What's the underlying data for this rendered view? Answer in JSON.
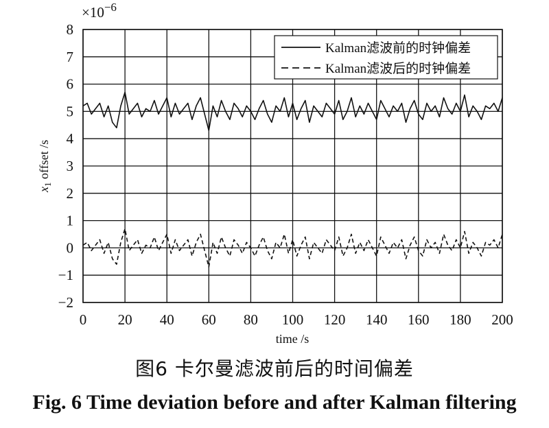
{
  "figure": {
    "caption_cn": "图6 卡尔曼滤波前后的时间偏差",
    "caption_en": "Fig. 6 Time deviation before and after Kalman filtering"
  },
  "chart_data": {
    "type": "line",
    "xlabel": "time /s",
    "ylabel_var": "x",
    "ylabel_sub": "1",
    "ylabel_rest": " offset /s",
    "y_multiplier": "×10",
    "y_multiplier_exp": "−6",
    "xlim": [
      0,
      200
    ],
    "ylim": [
      -2,
      8
    ],
    "x_ticks": [
      0,
      20,
      40,
      60,
      80,
      100,
      120,
      140,
      160,
      180,
      200
    ],
    "y_ticks": [
      -2,
      -1,
      0,
      1,
      2,
      3,
      4,
      5,
      6,
      7,
      8
    ],
    "x_tick_labels": [
      "0",
      "20",
      "40",
      "60",
      "80",
      "100",
      "120",
      "140",
      "160",
      "180",
      "200"
    ],
    "y_tick_labels": [
      "−2",
      "−1",
      "0",
      "1",
      "2",
      "3",
      "4",
      "5",
      "6",
      "7",
      "8"
    ],
    "grid": true,
    "legend_position": "top-right",
    "series": [
      {
        "name": "Kalman滤波前的时钟偏差",
        "style": "solid",
        "color": "#111111",
        "x": [
          0,
          2,
          4,
          6,
          8,
          10,
          12,
          14,
          16,
          18,
          20,
          22,
          24,
          26,
          28,
          30,
          32,
          34,
          36,
          38,
          40,
          42,
          44,
          46,
          48,
          50,
          52,
          54,
          56,
          58,
          60,
          62,
          64,
          66,
          68,
          70,
          72,
          74,
          76,
          78,
          80,
          82,
          84,
          86,
          88,
          90,
          92,
          94,
          96,
          98,
          100,
          102,
          104,
          106,
          108,
          110,
          112,
          114,
          116,
          118,
          120,
          122,
          124,
          126,
          128,
          130,
          132,
          134,
          136,
          138,
          140,
          142,
          144,
          146,
          148,
          150,
          152,
          154,
          156,
          158,
          160,
          162,
          164,
          166,
          168,
          170,
          172,
          174,
          176,
          178,
          180,
          182,
          184,
          186,
          188,
          190,
          192,
          194,
          196,
          198,
          200
        ],
        "values": [
          5.2,
          5.3,
          4.9,
          5.1,
          5.3,
          4.8,
          5.2,
          4.6,
          4.4,
          5.2,
          5.7,
          4.9,
          5.1,
          5.3,
          4.8,
          5.1,
          5.0,
          5.4,
          4.9,
          5.2,
          5.5,
          4.8,
          5.3,
          4.9,
          5.1,
          5.3,
          4.7,
          5.2,
          5.5,
          4.9,
          4.3,
          5.2,
          4.8,
          5.4,
          5.0,
          4.7,
          5.3,
          5.1,
          4.8,
          5.2,
          5.0,
          4.7,
          5.1,
          5.4,
          4.9,
          4.6,
          5.2,
          5.0,
          5.5,
          4.8,
          5.3,
          4.7,
          5.1,
          5.4,
          4.6,
          5.2,
          5.0,
          4.8,
          5.3,
          5.1,
          4.9,
          5.4,
          4.7,
          5.0,
          5.5,
          4.8,
          5.2,
          4.9,
          5.3,
          5.0,
          4.7,
          5.4,
          5.1,
          4.8,
          5.2,
          5.0,
          5.3,
          4.6,
          5.1,
          5.4,
          4.9,
          4.7,
          5.3,
          5.0,
          5.2,
          4.8,
          5.5,
          5.1,
          4.9,
          5.3,
          5.0,
          5.6,
          4.8,
          5.2,
          5.0,
          4.7,
          5.2,
          5.1,
          5.3,
          5.0,
          5.5
        ]
      },
      {
        "name": "Kalman滤波后的时钟偏差",
        "style": "dashed",
        "color": "#111111",
        "x": [
          0,
          2,
          4,
          6,
          8,
          10,
          12,
          14,
          16,
          18,
          20,
          22,
          24,
          26,
          28,
          30,
          32,
          34,
          36,
          38,
          40,
          42,
          44,
          46,
          48,
          50,
          52,
          54,
          56,
          58,
          60,
          62,
          64,
          66,
          68,
          70,
          72,
          74,
          76,
          78,
          80,
          82,
          84,
          86,
          88,
          90,
          92,
          94,
          96,
          98,
          100,
          102,
          104,
          106,
          108,
          110,
          112,
          114,
          116,
          118,
          120,
          122,
          124,
          126,
          128,
          130,
          132,
          134,
          136,
          138,
          140,
          142,
          144,
          146,
          148,
          150,
          152,
          154,
          156,
          158,
          160,
          162,
          164,
          166,
          168,
          170,
          172,
          174,
          176,
          178,
          180,
          182,
          184,
          186,
          188,
          190,
          192,
          194,
          196,
          198,
          200
        ],
        "values": [
          0.1,
          0.2,
          -0.1,
          0.1,
          0.3,
          -0.2,
          0.2,
          -0.4,
          -0.6,
          0.2,
          0.7,
          -0.1,
          0.1,
          0.3,
          -0.2,
          0.1,
          0.0,
          0.4,
          -0.1,
          0.2,
          0.5,
          -0.2,
          0.3,
          -0.1,
          0.1,
          0.3,
          -0.3,
          0.2,
          0.5,
          -0.1,
          -0.7,
          0.2,
          -0.2,
          0.4,
          0.0,
          -0.3,
          0.3,
          0.1,
          -0.2,
          0.2,
          0.0,
          -0.3,
          0.1,
          0.4,
          -0.1,
          -0.4,
          0.2,
          0.0,
          0.5,
          -0.2,
          0.3,
          -0.3,
          0.1,
          0.4,
          -0.4,
          0.2,
          0.0,
          -0.2,
          0.3,
          0.1,
          -0.1,
          0.4,
          -0.3,
          0.0,
          0.5,
          -0.2,
          0.2,
          -0.1,
          0.3,
          0.0,
          -0.3,
          0.4,
          0.1,
          -0.2,
          0.2,
          0.0,
          0.3,
          -0.4,
          0.1,
          0.4,
          -0.1,
          -0.3,
          0.3,
          0.0,
          0.2,
          -0.2,
          0.5,
          0.1,
          -0.1,
          0.3,
          0.0,
          0.6,
          -0.2,
          0.2,
          0.0,
          -0.3,
          0.2,
          0.1,
          0.3,
          0.0,
          0.5
        ]
      }
    ]
  }
}
